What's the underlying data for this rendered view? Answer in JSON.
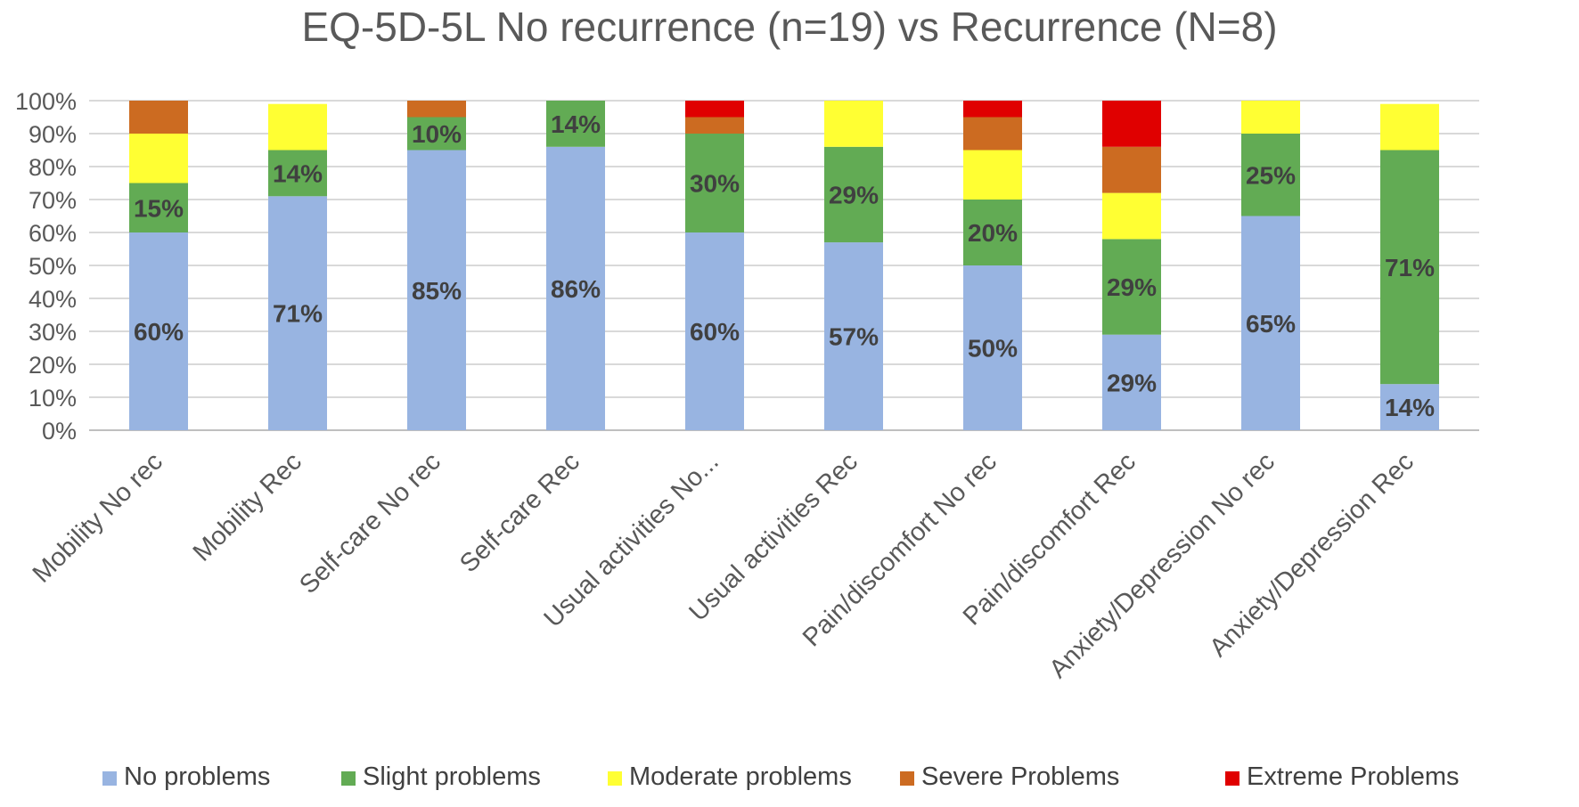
{
  "chart_data": {
    "type": "bar",
    "stacked": true,
    "percent_stacked": true,
    "title": "EQ-5D-5L No recurrence (n=19) vs Recurrence (N=8)",
    "categories": [
      "Mobility No rec",
      "Mobility Rec",
      "Self-care No rec",
      "Self-care Rec",
      "Usual activities No...",
      "Usual activities Rec",
      "Pain/discomfort No rec",
      "Pain/discomfort Rec",
      "Anxiety/Depression No rec",
      "Anxiety/Depression Rec"
    ],
    "y_ticks": [
      "0%",
      "10%",
      "20%",
      "30%",
      "40%",
      "50%",
      "60%",
      "70%",
      "80%",
      "90%",
      "100%"
    ],
    "ylim": [
      0,
      100
    ],
    "grid": true,
    "legend_position": "bottom",
    "series": [
      {
        "name": "No problems",
        "color": "#98B4E1",
        "values": [
          60,
          71,
          85,
          86,
          60,
          57,
          50,
          29,
          65,
          14
        ],
        "labels": [
          "60%",
          "71%",
          "85%",
          "86%",
          "60%",
          "57%",
          "50%",
          "29%",
          "65%",
          "14%"
        ]
      },
      {
        "name": "Slight problems",
        "color": "#62AB54",
        "values": [
          15,
          14,
          10,
          14,
          30,
          29,
          20,
          29,
          25,
          71
        ],
        "labels": [
          "15%",
          "14%",
          "10%",
          "14%",
          "30%",
          "29%",
          "20%",
          "29%",
          "25%",
          "71%"
        ]
      },
      {
        "name": "Moderate problems",
        "color": "#FFFF33",
        "values": [
          15,
          14,
          0,
          0,
          0,
          14,
          15,
          14,
          10,
          14
        ],
        "labels": [
          "",
          "",
          "",
          "",
          "",
          "",
          "",
          "",
          "",
          ""
        ]
      },
      {
        "name": "Severe Problems",
        "color": "#CC6B21",
        "values": [
          10,
          0,
          5,
          0,
          5,
          0,
          10,
          14,
          0,
          0
        ],
        "labels": [
          "",
          "",
          "",
          "",
          "",
          "",
          "",
          "",
          "",
          ""
        ]
      },
      {
        "name": "Extreme Problems",
        "color": "#E00000",
        "values": [
          0,
          0,
          0,
          0,
          5,
          0,
          5,
          14,
          0,
          0
        ],
        "labels": [
          "",
          "",
          "",
          "",
          "",
          "",
          "",
          "",
          "",
          ""
        ]
      }
    ]
  }
}
